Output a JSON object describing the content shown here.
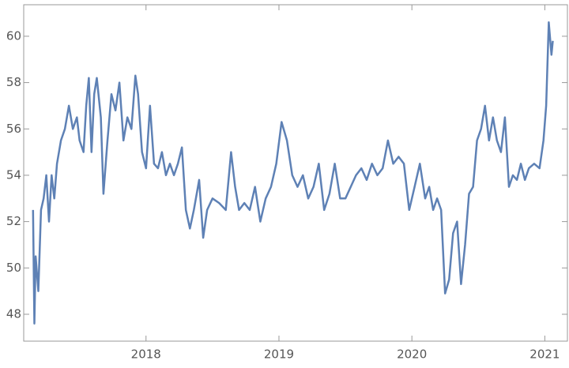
{
  "chart_data": {
    "type": "line",
    "x": [
      2017.15,
      2017.16,
      2017.17,
      2017.19,
      2017.21,
      2017.23,
      2017.25,
      2017.27,
      2017.29,
      2017.31,
      2017.33,
      2017.36,
      2017.39,
      2017.42,
      2017.45,
      2017.48,
      2017.5,
      2017.53,
      2017.55,
      2017.57,
      2017.59,
      2017.61,
      2017.63,
      2017.66,
      2017.68,
      2017.71,
      2017.74,
      2017.77,
      2017.8,
      2017.83,
      2017.86,
      2017.89,
      2017.92,
      2017.94,
      2017.97,
      2018.0,
      2018.03,
      2018.06,
      2018.09,
      2018.12,
      2018.15,
      2018.18,
      2018.21,
      2018.24,
      2018.27,
      2018.3,
      2018.33,
      2018.36,
      2018.4,
      2018.43,
      2018.46,
      2018.5,
      2018.55,
      2018.6,
      2018.64,
      2018.67,
      2018.7,
      2018.74,
      2018.78,
      2018.82,
      2018.86,
      2018.9,
      2018.94,
      2018.98,
      2019.02,
      2019.06,
      2019.1,
      2019.14,
      2019.18,
      2019.22,
      2019.26,
      2019.3,
      2019.34,
      2019.38,
      2019.42,
      2019.46,
      2019.5,
      2019.54,
      2019.58,
      2019.62,
      2019.66,
      2019.7,
      2019.74,
      2019.78,
      2019.82,
      2019.86,
      2019.9,
      2019.94,
      2019.98,
      2020.02,
      2020.06,
      2020.1,
      2020.13,
      2020.16,
      2020.19,
      2020.22,
      2020.25,
      2020.28,
      2020.31,
      2020.34,
      2020.37,
      2020.4,
      2020.43,
      2020.46,
      2020.49,
      2020.52,
      2020.55,
      2020.58,
      2020.61,
      2020.64,
      2020.67,
      2020.7,
      2020.73,
      2020.76,
      2020.79,
      2020.82,
      2020.85,
      2020.88,
      2020.92,
      2020.96,
      2020.99,
      2021.01,
      2021.03,
      2021.05,
      2021.06
    ],
    "series": [
      {
        "color": "#5e81b5",
        "values": [
          52.5,
          47.6,
          50.5,
          49,
          52.5,
          53,
          54,
          52,
          54,
          53,
          54.5,
          55.5,
          56,
          57,
          56,
          56.5,
          55.5,
          55,
          57,
          58.2,
          55,
          57.5,
          58.2,
          56.5,
          53.2,
          55.5,
          57.5,
          56.8,
          58,
          55.5,
          56.5,
          56,
          58.3,
          57.5,
          55,
          54.3,
          57,
          54.5,
          54.3,
          55,
          54,
          54.5,
          54,
          54.5,
          55.2,
          52.5,
          51.7,
          52.5,
          53.8,
          51.3,
          52.5,
          53,
          52.8,
          52.5,
          55,
          53.5,
          52.5,
          52.8,
          52.5,
          53.5,
          52,
          53,
          53.5,
          54.5,
          56.3,
          55.5,
          54,
          53.5,
          54,
          53,
          53.5,
          54.5,
          52.5,
          53.2,
          54.5,
          53,
          53,
          53.5,
          54,
          54.3,
          53.8,
          54.5,
          54,
          54.3,
          55.5,
          54.5,
          54.8,
          54.5,
          52.5,
          53.5,
          54.5,
          53,
          53.5,
          52.5,
          53,
          52.5,
          48.9,
          49.5,
          51.5,
          52,
          49.3,
          51,
          53.2,
          53.5,
          55.5,
          56,
          57,
          55.5,
          56.5,
          55.5,
          55,
          56.5,
          53.5,
          54,
          53.8,
          54.5,
          53.8,
          54.3,
          54.5,
          54.3,
          55.5,
          57,
          60.6,
          59.2,
          59.8
        ]
      }
    ],
    "xlim": [
      2017.08,
      2021.17
    ],
    "xticks": [
      2018,
      2019,
      2020,
      2021
    ],
    "ylim": [
      46.84,
      61.36
    ],
    "yticks": [
      48,
      50,
      52,
      54,
      56,
      58,
      60
    ]
  }
}
